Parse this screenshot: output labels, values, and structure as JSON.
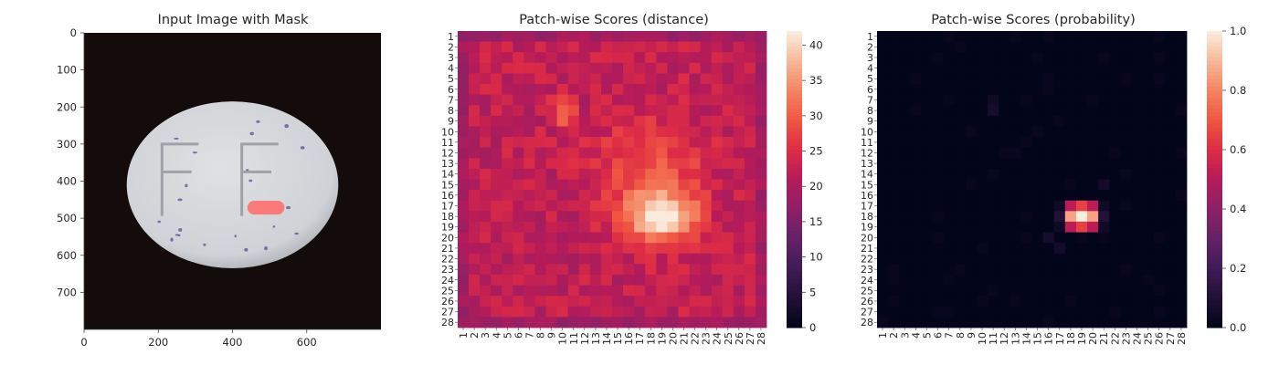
{
  "chart_data": [
    {
      "type": "image",
      "title": "Input Image with Mask",
      "xticks": [
        0,
        200,
        400,
        600
      ],
      "yticks": [
        0,
        100,
        200,
        300,
        400,
        500,
        600,
        700
      ],
      "xlim": [
        0,
        800
      ],
      "ylim": [
        800,
        0
      ],
      "object": {
        "shape": "pill tablet",
        "embossing": "FF",
        "center": [
          400,
          410
        ],
        "radii": [
          285,
          225
        ]
      },
      "mask": {
        "color": "#ff6f6f",
        "x": [
          440,
          540
        ],
        "y": [
          453,
          490
        ]
      },
      "colors": {
        "background": "#130c0a",
        "tablet": "#cfd2d6",
        "specks": "#5a5a9a"
      }
    },
    {
      "type": "heatmap",
      "title": "Patch-wise Scores (distance)",
      "colormap": "rocket",
      "rows": 28,
      "cols": 28,
      "tick_labels": [
        "1",
        "2",
        "3",
        "4",
        "5",
        "6",
        "7",
        "8",
        "9",
        "10",
        "11",
        "12",
        "13",
        "14",
        "15",
        "16",
        "17",
        "18",
        "19",
        "20",
        "21",
        "22",
        "23",
        "24",
        "25",
        "26",
        "27",
        "28"
      ],
      "vmin": 0,
      "vmax": 42,
      "colorbar_ticks": [
        0,
        5,
        10,
        15,
        20,
        25,
        30,
        35,
        40
      ],
      "background_level": 22,
      "hotspots": [
        {
          "row": 18,
          "col": 19,
          "peak": 42,
          "spread_rows": 2.2,
          "spread_cols": 3.0,
          "weight": 19
        },
        {
          "row": 8,
          "col": 10,
          "peak": 35,
          "spread_rows": 1.2,
          "spread_cols": 1.0,
          "weight": 11
        },
        {
          "row": 14,
          "col": 18,
          "peak": 30,
          "spread_rows": 5.0,
          "spread_cols": 4.5,
          "weight": 8
        }
      ],
      "low_rows_cols": {
        "edge_rows": [
          1,
          28
        ],
        "edge_cols": [
          1,
          28
        ],
        "edge_level": 17
      }
    },
    {
      "type": "heatmap",
      "title": "Patch-wise Scores (probability)",
      "colormap": "rocket",
      "rows": 28,
      "cols": 28,
      "tick_labels": [
        "1",
        "2",
        "3",
        "4",
        "5",
        "6",
        "7",
        "8",
        "9",
        "10",
        "11",
        "12",
        "13",
        "14",
        "15",
        "16",
        "17",
        "18",
        "19",
        "20",
        "21",
        "22",
        "23",
        "24",
        "25",
        "26",
        "27",
        "28"
      ],
      "vmin": 0.0,
      "vmax": 1.0,
      "colorbar_ticks": [
        "0.0",
        "0.2",
        "0.4",
        "0.6",
        "0.8",
        "1.0"
      ],
      "background_level": 0.0,
      "hotspots": [
        {
          "row": 18,
          "col": 19,
          "peak": 1.0,
          "spread_rows": 1.0,
          "spread_cols": 1.6,
          "weight": 1.0
        }
      ],
      "minor_cells": [
        {
          "row": 7,
          "col": 11,
          "value": 0.04
        },
        {
          "row": 8,
          "col": 11,
          "value": 0.06
        },
        {
          "row": 15,
          "col": 21,
          "value": 0.05
        },
        {
          "row": 20,
          "col": 16,
          "value": 0.06
        },
        {
          "row": 21,
          "col": 17,
          "value": 0.05
        }
      ]
    }
  ]
}
